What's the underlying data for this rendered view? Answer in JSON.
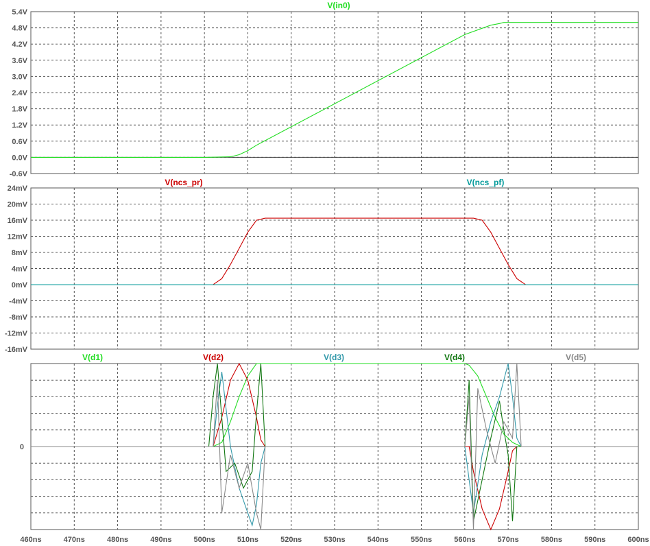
{
  "chart_data": [
    {
      "type": "line",
      "name": "pane-top",
      "xlim": [
        460,
        600
      ],
      "ylim": [
        -0.6,
        5.4
      ],
      "yticks": [
        "5.4V",
        "4.8V",
        "4.2V",
        "3.6V",
        "3.0V",
        "2.4V",
        "1.8V",
        "1.2V",
        "0.6V",
        "0.0V",
        "-0.6V"
      ],
      "series": [
        {
          "name": "V(in0)",
          "color": "#22dd22",
          "x": [
            460,
            500,
            506,
            508,
            510,
            512,
            560,
            566,
            568,
            569,
            570,
            600
          ],
          "y": [
            0.0,
            0.0,
            0.02,
            0.1,
            0.25,
            0.45,
            4.55,
            4.9,
            4.96,
            5.0,
            5.0,
            5.0
          ]
        }
      ]
    },
    {
      "type": "line",
      "name": "pane-middle",
      "xlim": [
        460,
        600
      ],
      "ylim": [
        -16,
        24
      ],
      "yticks": [
        "24mV",
        "20mV",
        "16mV",
        "12mV",
        "8mV",
        "4mV",
        "0mV",
        "-4mV",
        "-8mV",
        "-12mV",
        "-16mV"
      ],
      "series": [
        {
          "name": "V(ncs_pr)",
          "color": "#cc0000",
          "x": [
            460,
            502,
            504,
            506,
            508,
            510,
            512,
            514,
            562,
            564,
            566,
            568,
            570,
            572,
            574,
            600
          ],
          "y": [
            0,
            0,
            1.5,
            5,
            9,
            13,
            16,
            16.5,
            16.5,
            16,
            13,
            9,
            5,
            1.5,
            0,
            0
          ]
        },
        {
          "name": "V(ncs_pf)",
          "color": "#009999",
          "x": [
            460,
            600
          ],
          "y": [
            0,
            0
          ]
        }
      ]
    },
    {
      "type": "line",
      "name": "pane-bottom",
      "xlim": [
        460,
        600
      ],
      "ylim": [
        -1,
        1
      ],
      "yticks": [
        "0"
      ],
      "xticks": [
        "460ns",
        "470ns",
        "480ns",
        "490ns",
        "500ns",
        "510ns",
        "520ns",
        "530ns",
        "540ns",
        "550ns",
        "560ns",
        "570ns",
        "580ns",
        "590ns",
        "600ns"
      ],
      "series": [
        {
          "name": "V(d1)",
          "color": "#22dd22",
          "x": [
            460,
            502,
            504,
            506,
            508,
            510,
            512,
            514,
            560,
            561,
            563,
            565,
            567,
            569,
            571,
            573,
            600
          ],
          "y": [
            0,
            0,
            0.05,
            0.3,
            0.6,
            0.85,
            1.0,
            1.0,
            1.0,
            0.98,
            0.85,
            0.6,
            0.35,
            0.15,
            0.05,
            0,
            0
          ]
        },
        {
          "name": "V(d2)",
          "color": "#cc0000",
          "x": [
            460,
            502,
            504,
            506,
            508,
            510,
            512,
            513,
            514,
            560,
            561,
            562,
            564,
            566,
            568,
            570,
            571,
            572,
            600
          ],
          "y": [
            0,
            0,
            0.35,
            0.8,
            1.0,
            0.8,
            0.35,
            0.08,
            0,
            0,
            0,
            -0.3,
            -0.75,
            -1.0,
            -0.75,
            -0.3,
            -0.05,
            0,
            0
          ]
        },
        {
          "name": "V(d3)",
          "color": "#3399aa",
          "x": [
            460,
            502,
            503,
            504,
            506,
            508,
            510,
            511,
            512,
            513,
            514,
            560,
            561,
            562,
            564,
            566,
            568,
            570,
            571,
            572,
            573,
            600
          ],
          "y": [
            0,
            0,
            0.5,
            0.9,
            0.0,
            -0.5,
            -0.8,
            -0.95,
            -0.7,
            -0.2,
            0,
            0,
            -0.4,
            -0.8,
            -0.1,
            0.3,
            0.6,
            1.0,
            0.6,
            0.1,
            0,
            0
          ]
        },
        {
          "name": "V(d4)",
          "color": "#117711",
          "x": [
            460,
            501,
            502,
            503,
            505,
            507,
            509,
            511,
            512,
            513,
            514,
            560,
            561,
            562,
            564,
            566,
            568,
            569,
            570,
            571,
            572,
            600
          ],
          "y": [
            0,
            0,
            0.6,
            1.0,
            -0.3,
            -0.2,
            -0.5,
            -0.3,
            0.4,
            1.0,
            0,
            0,
            0.8,
            -0.9,
            -0.4,
            0.1,
            0.55,
            0.2,
            -0.1,
            -0.9,
            0,
            0
          ]
        },
        {
          "name": "V(d5)",
          "color": "#888888",
          "x": [
            460,
            502,
            503,
            504,
            506,
            508,
            510,
            512,
            513,
            514,
            560,
            561,
            562,
            563,
            565,
            567,
            569,
            571,
            572,
            573,
            600
          ],
          "y": [
            0,
            0,
            0.8,
            -0.8,
            -0.1,
            -0.5,
            -0.2,
            -0.8,
            -1.0,
            0,
            0,
            0.6,
            -1.0,
            0.7,
            0.2,
            -0.2,
            0.3,
            0.1,
            1.0,
            0,
            0
          ]
        }
      ]
    }
  ]
}
